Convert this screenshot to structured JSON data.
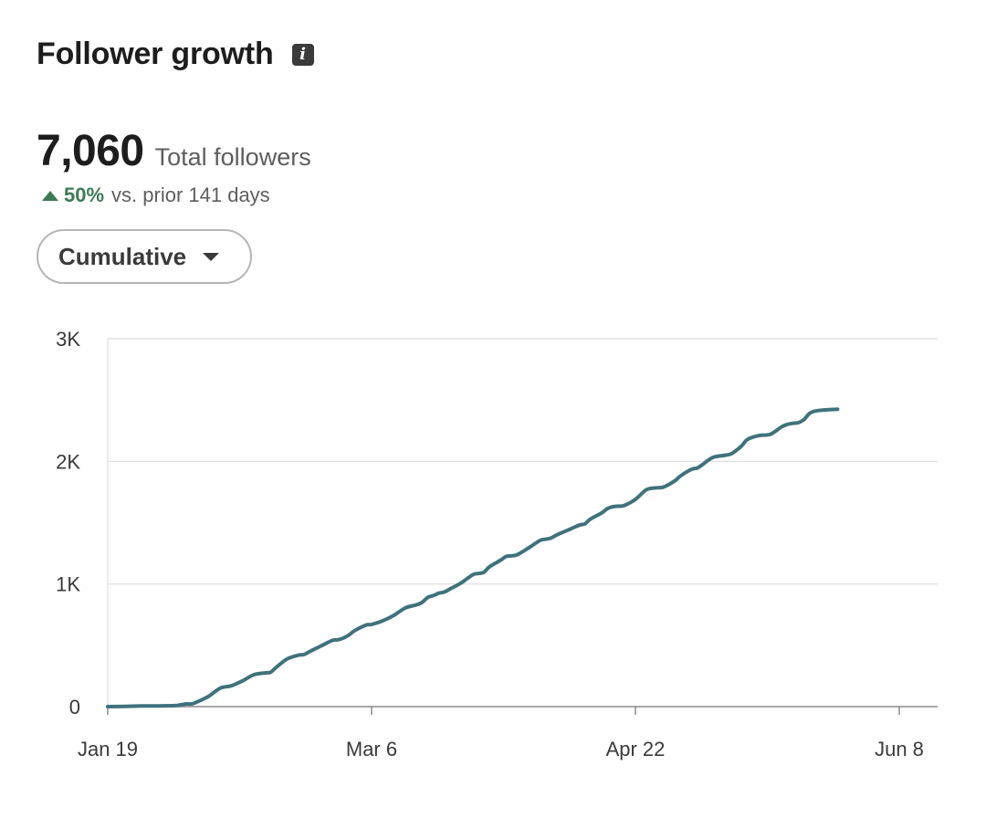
{
  "header": {
    "title": "Follower growth",
    "info_icon": "info-icon"
  },
  "summary": {
    "total_value": "7,060",
    "total_label": "Total followers",
    "change_icon": "triangle-up-icon",
    "change_pct": "50%",
    "change_text": "vs. prior 141 days",
    "positive_color": "#3c7a55"
  },
  "dropdown": {
    "selected": "Cumulative",
    "icon": "caret-down-icon"
  },
  "chart_data": {
    "type": "line",
    "title": "",
    "xlabel": "",
    "ylabel": "",
    "x_ticks": [
      "Jan 19",
      "Mar 6",
      "Apr 22",
      "Jun 8"
    ],
    "x_range_days": [
      0,
      141
    ],
    "y_ticks": [
      "0",
      "1K",
      "2K",
      "3K"
    ],
    "ylim": [
      0,
      3000
    ],
    "grid": true,
    "legend": "none",
    "line_color": "#3f727c",
    "series": [
      {
        "name": "",
        "points": [
          [
            0,
            0
          ],
          [
            3,
            2
          ],
          [
            6,
            5
          ],
          [
            9,
            6
          ],
          [
            12,
            8
          ],
          [
            13,
            15
          ],
          [
            14,
            22
          ],
          [
            15,
            22
          ],
          [
            16,
            40
          ],
          [
            18,
            85
          ],
          [
            20,
            150
          ],
          [
            22,
            170
          ],
          [
            24,
            210
          ],
          [
            26,
            260
          ],
          [
            28,
            275
          ],
          [
            29,
            280
          ],
          [
            30,
            320
          ],
          [
            32,
            390
          ],
          [
            34,
            420
          ],
          [
            35,
            425
          ],
          [
            36,
            450
          ],
          [
            38,
            495
          ],
          [
            40,
            540
          ],
          [
            41,
            545
          ],
          [
            42,
            560
          ],
          [
            43,
            585
          ],
          [
            44,
            620
          ],
          [
            46,
            665
          ],
          [
            47,
            670
          ],
          [
            49,
            700
          ],
          [
            51,
            745
          ],
          [
            53,
            805
          ],
          [
            55,
            830
          ],
          [
            56,
            850
          ],
          [
            57,
            890
          ],
          [
            58,
            905
          ],
          [
            59,
            925
          ],
          [
            60,
            935
          ],
          [
            61,
            960
          ],
          [
            63,
            1010
          ],
          [
            65,
            1075
          ],
          [
            66,
            1085
          ],
          [
            67,
            1095
          ],
          [
            68,
            1140
          ],
          [
            70,
            1195
          ],
          [
            71,
            1225
          ],
          [
            72,
            1230
          ],
          [
            73,
            1240
          ],
          [
            75,
            1295
          ],
          [
            77,
            1355
          ],
          [
            78,
            1365
          ],
          [
            79,
            1375
          ],
          [
            80,
            1400
          ],
          [
            82,
            1440
          ],
          [
            84,
            1480
          ],
          [
            85,
            1490
          ],
          [
            86,
            1530
          ],
          [
            88,
            1580
          ],
          [
            89,
            1615
          ],
          [
            90,
            1630
          ],
          [
            91,
            1635
          ],
          [
            92,
            1640
          ],
          [
            94,
            1690
          ],
          [
            96,
            1770
          ],
          [
            98,
            1785
          ],
          [
            99,
            1790
          ],
          [
            101,
            1840
          ],
          [
            102,
            1880
          ],
          [
            104,
            1935
          ],
          [
            105,
            1945
          ],
          [
            106,
            1975
          ],
          [
            107,
            2010
          ],
          [
            108,
            2035
          ],
          [
            110,
            2050
          ],
          [
            111,
            2060
          ],
          [
            112,
            2090
          ],
          [
            113,
            2130
          ],
          [
            114,
            2180
          ],
          [
            116,
            2210
          ],
          [
            118,
            2220
          ],
          [
            120,
            2280
          ],
          [
            121,
            2300
          ],
          [
            122,
            2310
          ],
          [
            123,
            2315
          ],
          [
            124,
            2340
          ],
          [
            125,
            2390
          ],
          [
            126,
            2410
          ],
          [
            128,
            2420
          ],
          [
            130,
            2425
          ]
        ]
      }
    ]
  }
}
